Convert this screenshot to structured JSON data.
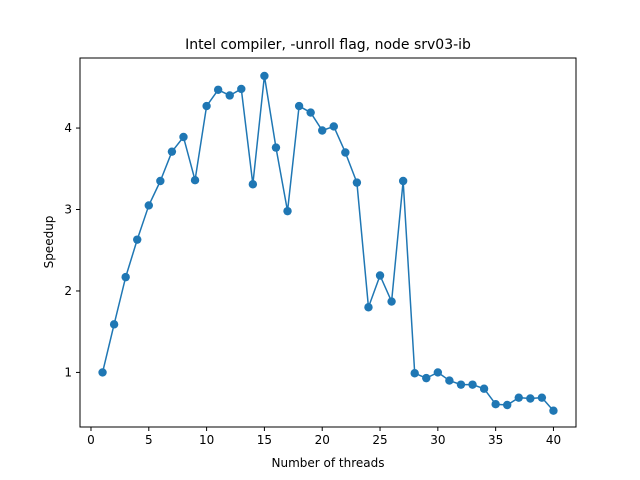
{
  "chart_data": {
    "type": "line",
    "title": "Intel compiler, -unroll flag, node srv03-ib",
    "xlabel": "Number of threads",
    "ylabel": "Speedup",
    "xlim": [
      -0.95,
      41.95
    ],
    "ylim": [
      0.33,
      4.86
    ],
    "xticks": [
      0,
      5,
      10,
      15,
      20,
      25,
      30,
      35,
      40
    ],
    "yticks": [
      1,
      2,
      3,
      4
    ],
    "grid": false,
    "color": "#1f77b4",
    "series": [
      {
        "x": [
          1,
          2,
          3,
          4,
          5,
          6,
          7,
          8,
          9,
          10,
          11,
          12,
          13,
          14,
          15,
          16,
          17,
          18,
          19,
          20,
          21,
          22,
          23,
          24,
          25,
          26,
          27,
          28,
          29,
          30,
          31,
          32,
          33,
          34,
          35,
          36,
          37,
          38,
          39,
          40
        ],
        "y": [
          1.0,
          1.59,
          2.17,
          2.63,
          3.05,
          3.35,
          3.71,
          3.89,
          3.36,
          4.27,
          4.47,
          4.4,
          4.48,
          3.31,
          4.64,
          3.76,
          2.98,
          4.27,
          4.19,
          3.97,
          4.02,
          3.7,
          3.33,
          1.8,
          2.19,
          1.87,
          3.35,
          0.99,
          0.93,
          1.0,
          0.9,
          0.85,
          0.85,
          0.8,
          0.61,
          0.6,
          0.69,
          0.68,
          0.69,
          0.53
        ]
      }
    ]
  }
}
